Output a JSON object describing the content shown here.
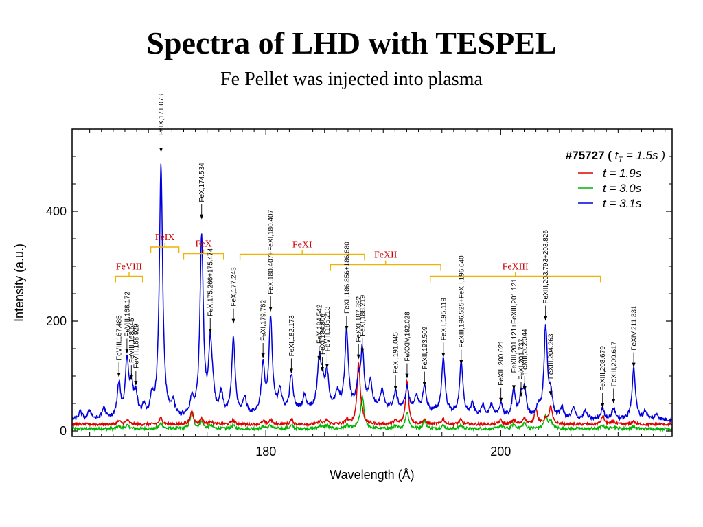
{
  "slide": {
    "title": "Spectra of LHD with TESPEL",
    "subtitle": "Fe Pellet was injected into plasma"
  },
  "chart_data": {
    "type": "line",
    "xlabel": "Wavelength (Å)",
    "ylabel": "Intensity (a.u.)",
    "xlim": [
      163.5,
      214.6
    ],
    "ylim": [
      -10,
      550
    ],
    "xticks": [
      180,
      200
    ],
    "yticks": [
      0,
      200,
      400
    ],
    "legend": {
      "title_parts": [
        "#75727 ( ",
        "t",
        "T",
        " = 1.5s )"
      ],
      "position": "top-right"
    },
    "colors": {
      "red": "#e00000",
      "green": "#00b400",
      "blue": "#0000dd",
      "bracket": "#f0b400",
      "group_label": "#cc0000"
    },
    "series": [
      {
        "name": "t = 1.9s",
        "color": "#e00000",
        "baseline": 12,
        "width_scale": 0.9,
        "peaks": [
          [
            167.5,
            6
          ],
          [
            168.2,
            8
          ],
          [
            171.07,
            12
          ],
          [
            173.7,
            25
          ],
          [
            174.53,
            10
          ],
          [
            175.3,
            6
          ],
          [
            177.2,
            8
          ],
          [
            179.8,
            5
          ],
          [
            180.4,
            8
          ],
          [
            182.2,
            8
          ],
          [
            184.6,
            6
          ],
          [
            185.2,
            8
          ],
          [
            186.9,
            8
          ],
          [
            187.9,
            112
          ],
          [
            188.2,
            10
          ],
          [
            191.0,
            6
          ],
          [
            192.03,
            78
          ],
          [
            193.5,
            8
          ],
          [
            195.1,
            10
          ],
          [
            196.6,
            8
          ],
          [
            200.0,
            8
          ],
          [
            201.1,
            8
          ],
          [
            202.0,
            12
          ],
          [
            203.0,
            28
          ],
          [
            203.83,
            10
          ],
          [
            204.26,
            32
          ],
          [
            208.7,
            15
          ],
          [
            209.6,
            6
          ],
          [
            211.3,
            6
          ]
        ]
      },
      {
        "name": "t = 3.0s",
        "color": "#00b400",
        "baseline": 4,
        "width_scale": 1.0,
        "peaks": [
          [
            167.5,
            4
          ],
          [
            168.2,
            6
          ],
          [
            171.07,
            10
          ],
          [
            173.7,
            30
          ],
          [
            174.53,
            12
          ],
          [
            175.3,
            6
          ],
          [
            177.2,
            6
          ],
          [
            179.8,
            4
          ],
          [
            180.4,
            6
          ],
          [
            182.2,
            6
          ],
          [
            184.6,
            5
          ],
          [
            185.2,
            6
          ],
          [
            186.9,
            6
          ],
          [
            187.9,
            4
          ],
          [
            188.22,
            58
          ],
          [
            191.0,
            4
          ],
          [
            192.03,
            30
          ],
          [
            193.5,
            14
          ],
          [
            195.1,
            6
          ],
          [
            196.6,
            6
          ],
          [
            200.0,
            6
          ],
          [
            201.1,
            8
          ],
          [
            202.0,
            10
          ],
          [
            203.83,
            22
          ],
          [
            204.26,
            14
          ],
          [
            208.7,
            6
          ],
          [
            209.6,
            4
          ],
          [
            211.3,
            4
          ]
        ]
      },
      {
        "name": "t = 3.1s",
        "color": "#0000dd",
        "baseline": 20,
        "width_scale": 1.0,
        "peaks": [
          [
            164.2,
            14
          ],
          [
            165.0,
            16
          ],
          [
            166.2,
            20
          ],
          [
            167.49,
            62
          ],
          [
            168.17,
            102
          ],
          [
            168.55,
            54
          ],
          [
            168.93,
            40
          ],
          [
            169.6,
            18
          ],
          [
            170.3,
            30
          ],
          [
            171.07,
            460
          ],
          [
            172.1,
            25
          ],
          [
            173.7,
            30
          ],
          [
            174.53,
            330
          ],
          [
            175.27,
            125
          ],
          [
            175.5,
            30
          ],
          [
            176.2,
            40
          ],
          [
            177.24,
            140
          ],
          [
            178.2,
            30
          ],
          [
            179.76,
            85
          ],
          [
            180.41,
            170
          ],
          [
            181.2,
            40
          ],
          [
            182.17,
            65
          ],
          [
            183.3,
            25
          ],
          [
            184.54,
            85
          ],
          [
            184.81,
            45
          ],
          [
            185.21,
            60
          ],
          [
            186.1,
            25
          ],
          [
            186.88,
            140
          ],
          [
            187.89,
            40
          ],
          [
            188.22,
            100
          ],
          [
            188.9,
            45
          ],
          [
            189.9,
            30
          ],
          [
            191.05,
            30
          ],
          [
            192.03,
            40
          ],
          [
            192.8,
            25
          ],
          [
            193.51,
            45
          ],
          [
            195.12,
            100
          ],
          [
            196.64,
            95
          ],
          [
            197.6,
            20
          ],
          [
            198.5,
            20
          ],
          [
            199.2,
            20
          ],
          [
            200.02,
            25
          ],
          [
            201.12,
            50
          ],
          [
            201.74,
            35
          ],
          [
            202.04,
            50
          ],
          [
            203.2,
            20
          ],
          [
            203.83,
            165
          ],
          [
            204.26,
            40
          ],
          [
            205.2,
            20
          ],
          [
            206.2,
            20
          ],
          [
            207.2,
            15
          ],
          [
            208.68,
            20
          ],
          [
            209.62,
            20
          ],
          [
            211.33,
            95
          ],
          [
            212.3,
            15
          ],
          [
            213.3,
            10
          ]
        ]
      }
    ],
    "peak_labels": [
      {
        "text": "FeVIII,167.485",
        "x": 167.485,
        "y": 90
      },
      {
        "text": "FeVIII,168.172",
        "x": 168.172,
        "y": 133
      },
      {
        "text": "FeVIII,168.545",
        "x": 168.545,
        "y": 85
      },
      {
        "text": "FeVIII,168.929",
        "x": 168.929,
        "y": 75
      },
      {
        "text": "FeIX,171.073",
        "x": 171.073,
        "y": 500
      },
      {
        "text": "FeX,174.534",
        "x": 174.534,
        "y": 378
      },
      {
        "text": "FeX,175.266+175.474",
        "x": 175.266,
        "y": 170
      },
      {
        "text": "FeX,177.243",
        "x": 177.243,
        "y": 188
      },
      {
        "text": "FeXI,179.762",
        "x": 179.762,
        "y": 125
      },
      {
        "text": "FeX,180.407+FeXI,180.407",
        "x": 180.407,
        "y": 210
      },
      {
        "text": "FeXI,182.173",
        "x": 182.173,
        "y": 97
      },
      {
        "text": "FeX,184.542",
        "x": 184.542,
        "y": 120
      },
      {
        "text": "FeXI,184.806",
        "x": 184.806,
        "y": 100
      },
      {
        "text": "FeVIII,185.213",
        "x": 185.213,
        "y": 106
      },
      {
        "text": "FeXII,186.856+186.880",
        "x": 186.88,
        "y": 175
      },
      {
        "text": "FeXXI,187.892",
        "x": 187.892,
        "y": 123
      },
      {
        "text": "FeXI,188.219",
        "x": 188.219,
        "y": 134
      },
      {
        "text": "FeXI,191.045",
        "x": 191.045,
        "y": 66
      },
      {
        "text": "FeXXIV,192.028",
        "x": 192.028,
        "y": 88
      },
      {
        "text": "FeXII,193.509",
        "x": 193.509,
        "y": 73
      },
      {
        "text": "FeXII,195.119",
        "x": 195.119,
        "y": 126
      },
      {
        "text": "FeXIII,196.525+FeXII,196.640",
        "x": 196.64,
        "y": 113
      },
      {
        "text": "FeXIII,200.021",
        "x": 200.021,
        "y": 44
      },
      {
        "text": "FeXIII,201.121+FeXIII,201.121",
        "x": 201.121,
        "y": 67
      },
      {
        "text": "FeXI,201.737",
        "x": 201.737,
        "y": 54
      },
      {
        "text": "FeXIII,202.044",
        "x": 202.044,
        "y": 65
      },
      {
        "text": "FeXIII,203.793+203.826",
        "x": 203.826,
        "y": 193
      },
      {
        "text": "FeXIII,204.263",
        "x": 204.263,
        "y": 56
      },
      {
        "text": "FeXIII,208.679",
        "x": 208.679,
        "y": 34
      },
      {
        "text": "FeXIII,209.617",
        "x": 209.617,
        "y": 42
      },
      {
        "text": "FeXIV,211.331",
        "x": 211.331,
        "y": 108
      }
    ],
    "ion_groups": [
      {
        "text": "FeVIII",
        "x1": 167.2,
        "x2": 169.5,
        "y": 282
      },
      {
        "text": "FeIX",
        "x1": 170.2,
        "x2": 172.6,
        "y": 335
      },
      {
        "text": "FeX",
        "x1": 173.0,
        "x2": 176.4,
        "y": 323
      },
      {
        "text": "FeXI",
        "x1": 177.8,
        "x2": 188.4,
        "y": 322
      },
      {
        "text": "FeXII",
        "x1": 185.5,
        "x2": 194.9,
        "y": 303
      },
      {
        "text": "FeXIII",
        "x1": 194.0,
        "x2": 208.5,
        "y": 282
      }
    ]
  }
}
